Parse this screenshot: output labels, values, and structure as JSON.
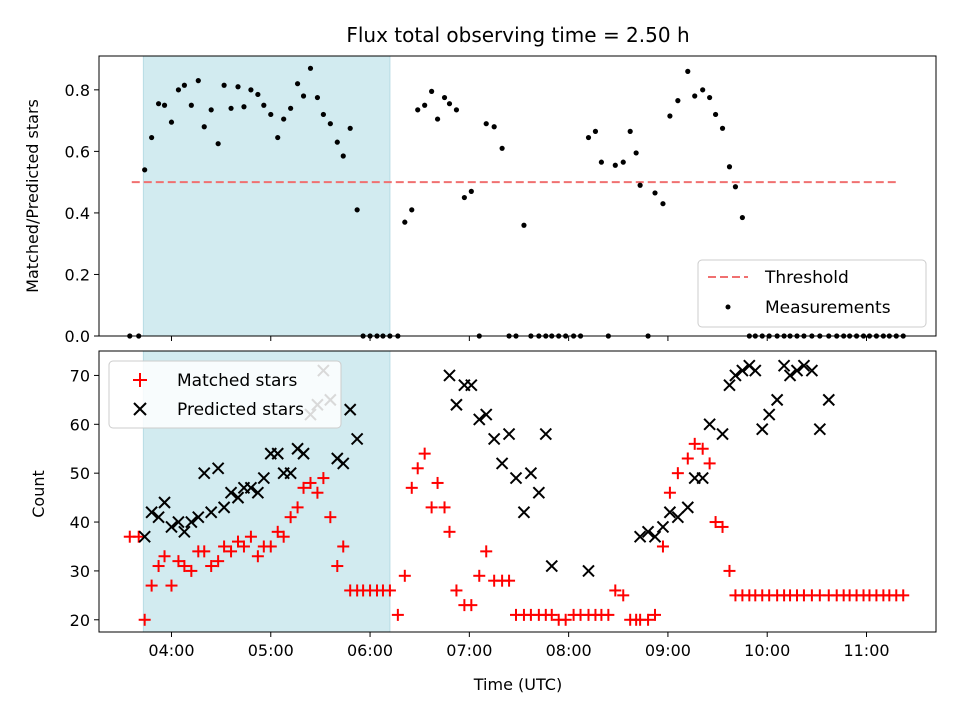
{
  "chart_data": [
    {
      "type": "scatter",
      "title": "Flux total observing time = 2.50 h",
      "xlabel": "",
      "ylabel": "Matched/Predicted stars",
      "xlim": [
        3.27,
        11.7
      ],
      "ylim": [
        0,
        0.91
      ],
      "yticks": [
        0.0,
        0.2,
        0.4,
        0.6,
        0.8
      ],
      "ytick_labels": [
        "0.0",
        "0.2",
        "0.4",
        "0.6",
        "0.8"
      ],
      "shaded_span": [
        3.717,
        6.2
      ],
      "shade_color": "#d2ebf0",
      "threshold": {
        "name": "Threshold",
        "value": 0.5,
        "x": [
          3.6,
          11.33
        ],
        "color": "#f07070"
      },
      "legend": {
        "placement": "lower-right",
        "entries": [
          "Threshold",
          "Measurements"
        ]
      },
      "series": [
        {
          "name": "Measurements",
          "color": "#000000",
          "x": [
            3.58,
            3.67,
            3.73,
            3.8,
            3.87,
            3.93,
            4.0,
            4.07,
            4.13,
            4.2,
            4.27,
            4.33,
            4.4,
            4.47,
            4.53,
            4.6,
            4.67,
            4.73,
            4.8,
            4.87,
            4.93,
            5.0,
            5.07,
            5.13,
            5.2,
            5.27,
            5.33,
            5.4,
            5.47,
            5.53,
            5.6,
            5.67,
            5.73,
            5.8,
            5.87,
            5.93,
            6.0,
            6.07,
            6.13,
            6.2,
            6.28,
            6.35,
            6.42,
            6.48,
            6.55,
            6.62,
            6.68,
            6.75,
            6.8,
            6.87,
            6.95,
            7.02,
            7.1,
            7.17,
            7.25,
            7.33,
            7.4,
            7.47,
            7.55,
            7.62,
            7.7,
            7.77,
            7.83,
            7.9,
            7.97,
            8.05,
            8.12,
            8.2,
            8.27,
            8.33,
            8.4,
            8.47,
            8.55,
            8.62,
            8.68,
            8.72,
            8.8,
            8.87,
            8.95,
            9.02,
            9.1,
            9.2,
            9.27,
            9.35,
            9.42,
            9.48,
            9.55,
            9.62,
            9.68,
            9.75,
            9.82,
            9.88,
            9.95,
            10.02,
            10.1,
            10.17,
            10.23,
            10.3,
            10.37,
            10.45,
            10.53,
            10.62,
            10.7,
            10.77,
            10.83,
            10.9,
            10.97,
            11.03,
            11.1,
            11.17,
            11.23,
            11.3,
            11.37
          ],
          "y": [
            0.0,
            0.0,
            0.54,
            0.645,
            0.755,
            0.75,
            0.695,
            0.8,
            0.815,
            0.75,
            0.83,
            0.68,
            0.735,
            0.625,
            0.815,
            0.74,
            0.81,
            0.745,
            0.8,
            0.785,
            0.75,
            0.72,
            0.645,
            0.705,
            0.74,
            0.82,
            0.78,
            0.87,
            0.775,
            0.72,
            0.69,
            0.63,
            0.585,
            0.675,
            0.41,
            0.0,
            0.0,
            0.0,
            0.0,
            0.0,
            0.0,
            0.37,
            0.41,
            0.735,
            0.75,
            0.795,
            0.705,
            0.775,
            0.755,
            0.735,
            0.45,
            0.47,
            0.0,
            0.69,
            0.68,
            0.61,
            0.0,
            0.0,
            0.36,
            0.0,
            0.0,
            0.0,
            0.0,
            0.0,
            0.0,
            0.0,
            0.0,
            0.645,
            0.665,
            0.565,
            0.0,
            0.555,
            0.565,
            0.665,
            0.595,
            0.49,
            0.0,
            0.465,
            0.43,
            0.715,
            0.765,
            0.86,
            0.78,
            0.8,
            0.775,
            0.72,
            0.675,
            0.55,
            0.485,
            0.385,
            0.0,
            0.0,
            0.0,
            0.0,
            0.0,
            0.0,
            0.0,
            0.0,
            0.0,
            0.0,
            0.0,
            0.0,
            0.0,
            0.0,
            0.0,
            0.0,
            0.0,
            0.0,
            0.0,
            0.0,
            0.0,
            0.0,
            0.0
          ]
        }
      ]
    },
    {
      "type": "scatter",
      "title": "",
      "xlabel": "Time (UTC)",
      "ylabel": "Count",
      "xlim": [
        3.27,
        11.7
      ],
      "ylim": [
        17.5,
        75
      ],
      "xticks": [
        4,
        5,
        6,
        7,
        8,
        9,
        10,
        11
      ],
      "xtick_labels": [
        "04:00",
        "05:00",
        "06:00",
        "07:00",
        "08:00",
        "09:00",
        "10:00",
        "11:00"
      ],
      "yticks": [
        20,
        30,
        40,
        50,
        60,
        70
      ],
      "ytick_labels": [
        "20",
        "30",
        "40",
        "50",
        "60",
        "70"
      ],
      "shaded_span": [
        3.717,
        6.2
      ],
      "legend": {
        "placement": "upper-left",
        "entries": [
          "Matched stars",
          "Predicted stars"
        ]
      },
      "series": [
        {
          "name": "Matched stars",
          "marker": "plus",
          "color": "#ff0000",
          "x": [
            3.58,
            3.67,
            3.73,
            3.8,
            3.87,
            3.93,
            4.0,
            4.07,
            4.13,
            4.2,
            4.27,
            4.33,
            4.4,
            4.47,
            4.53,
            4.6,
            4.67,
            4.73,
            4.8,
            4.87,
            4.93,
            5.0,
            5.07,
            5.13,
            5.2,
            5.27,
            5.33,
            5.4,
            5.47,
            5.53,
            5.6,
            5.67,
            5.73,
            5.8,
            5.87,
            5.93,
            6.0,
            6.07,
            6.13,
            6.2,
            6.28,
            6.35,
            6.42,
            6.48,
            6.55,
            6.62,
            6.68,
            6.75,
            6.8,
            6.87,
            6.95,
            7.02,
            7.1,
            7.17,
            7.25,
            7.33,
            7.4,
            7.47,
            7.55,
            7.62,
            7.7,
            7.77,
            7.83,
            7.9,
            7.97,
            8.05,
            8.12,
            8.2,
            8.27,
            8.33,
            8.4,
            8.47,
            8.55,
            8.62,
            8.68,
            8.72,
            8.8,
            8.87,
            8.95,
            9.02,
            9.1,
            9.2,
            9.27,
            9.35,
            9.42,
            9.48,
            9.55,
            9.62,
            9.68,
            9.75,
            9.82,
            9.88,
            9.95,
            10.02,
            10.1,
            10.17,
            10.23,
            10.3,
            10.37,
            10.45,
            10.53,
            10.62,
            10.7,
            10.77,
            10.83,
            10.9,
            10.97,
            11.03,
            11.1,
            11.17,
            11.23,
            11.3,
            11.37
          ],
          "y": [
            37,
            37,
            20,
            27,
            31,
            33,
            27,
            32,
            31,
            30,
            34,
            34,
            31,
            32,
            35,
            34,
            36,
            35,
            37,
            33,
            35,
            35,
            38,
            37,
            41,
            43,
            47,
            48,
            46,
            49,
            41,
            31,
            35,
            26,
            26,
            26,
            26,
            26,
            26,
            26,
            21,
            29,
            47,
            51,
            54,
            43,
            48,
            43,
            38,
            26,
            23,
            23,
            29,
            34,
            28,
            28,
            28,
            21,
            21,
            21,
            21,
            21,
            21,
            20,
            20,
            21,
            21,
            21,
            21,
            21,
            21,
            26,
            25,
            20,
            20,
            20,
            20,
            21,
            35,
            46,
            50,
            53,
            56,
            55,
            52,
            40,
            39,
            30,
            25,
            25,
            25,
            25,
            25,
            25,
            25,
            25,
            25,
            25,
            25,
            25,
            25,
            25,
            25,
            25,
            25,
            25,
            25,
            25,
            25,
            25,
            25,
            25,
            25
          ]
        },
        {
          "name": "Predicted stars",
          "marker": "x",
          "color": "#000000",
          "x": [
            3.73,
            3.8,
            3.87,
            3.93,
            4.0,
            4.07,
            4.13,
            4.2,
            4.27,
            4.33,
            4.4,
            4.47,
            4.53,
            4.6,
            4.67,
            4.73,
            4.8,
            4.87,
            4.93,
            5.0,
            5.07,
            5.13,
            5.2,
            5.27,
            5.33,
            5.4,
            5.47,
            5.53,
            5.6,
            5.67,
            5.73,
            5.8,
            5.87,
            6.8,
            6.87,
            6.95,
            7.02,
            7.1,
            7.17,
            7.25,
            7.33,
            7.4,
            7.47,
            7.55,
            7.62,
            7.7,
            7.77,
            7.83,
            8.2,
            8.72,
            8.8,
            8.87,
            8.95,
            9.02,
            9.1,
            9.2,
            9.27,
            9.35,
            9.42,
            9.55,
            9.62,
            9.68,
            9.75,
            9.82,
            9.88,
            9.95,
            10.02,
            10.1,
            10.17,
            10.23,
            10.3,
            10.37,
            10.45,
            10.53,
            10.62
          ],
          "y": [
            37,
            42,
            41,
            44,
            39,
            40,
            38,
            40,
            41,
            50,
            42,
            51,
            43,
            46,
            45,
            47,
            47,
            46,
            49,
            54,
            54,
            50,
            50,
            55,
            54,
            62,
            64,
            71,
            65,
            53,
            52,
            63,
            57,
            70,
            64,
            68,
            68,
            61,
            62,
            57,
            52,
            58,
            49,
            42,
            50,
            46,
            58,
            31,
            30,
            37,
            38,
            37,
            39,
            42,
            41,
            43,
            49,
            49,
            60,
            58,
            68,
            70,
            71,
            72,
            71,
            59,
            62,
            65,
            72,
            70,
            71,
            72,
            71,
            59,
            65
          ]
        }
      ]
    }
  ]
}
